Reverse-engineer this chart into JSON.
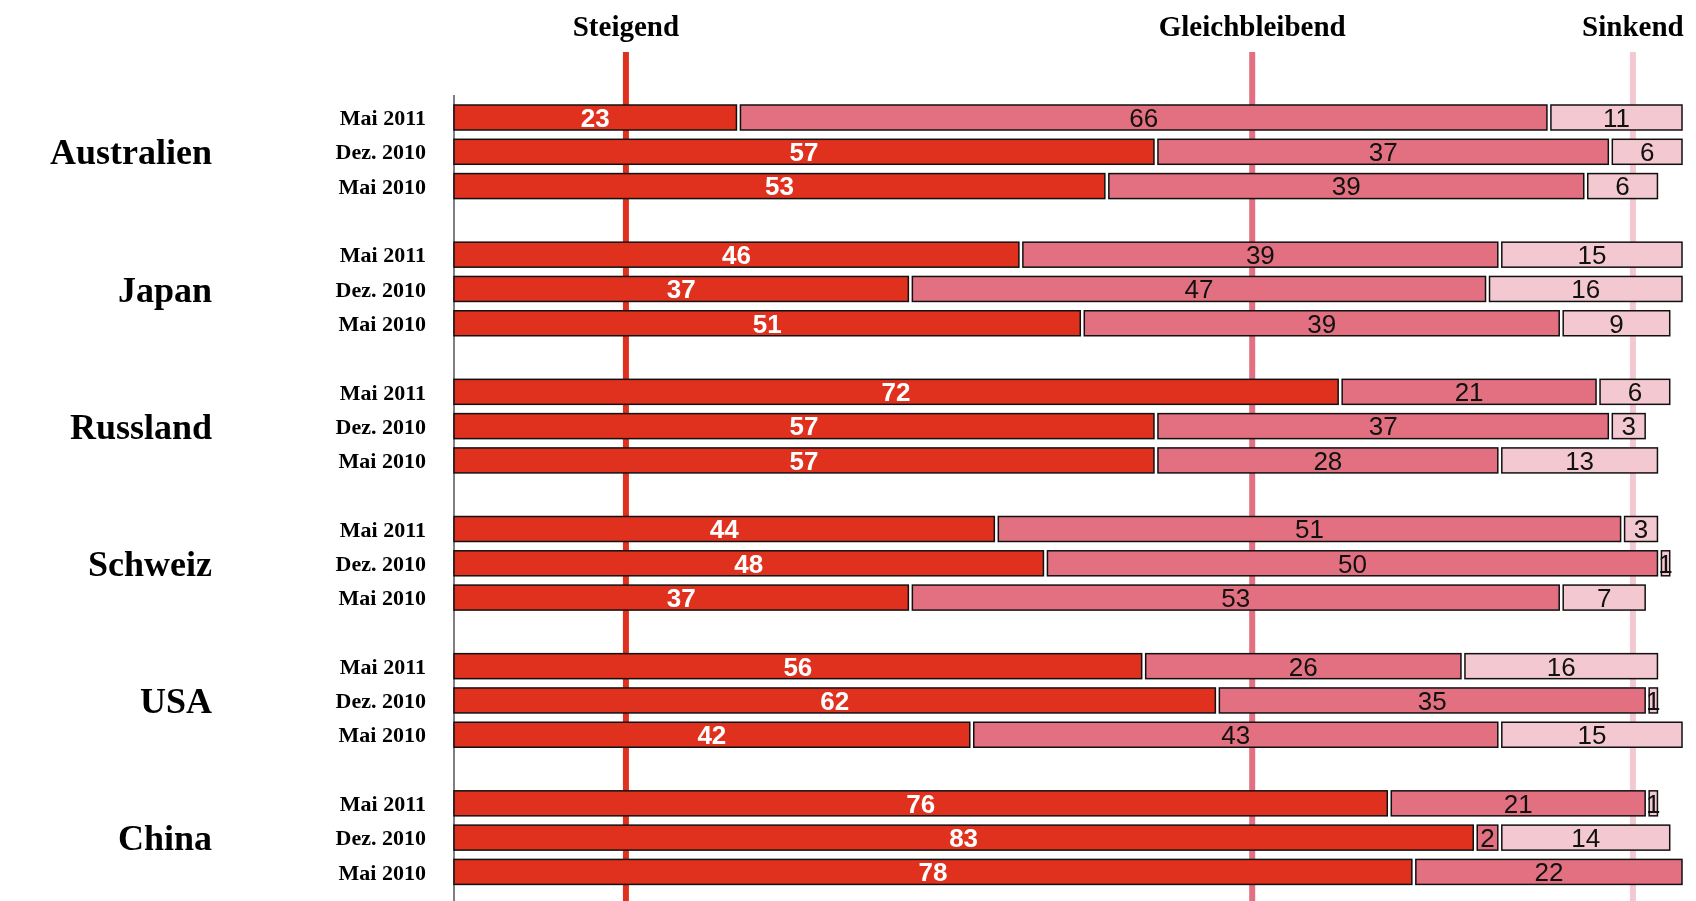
{
  "chart_data": {
    "type": "bar",
    "orientation": "horizontal",
    "stacked": true,
    "data_labels": true,
    "categories": [
      "Mai 2011",
      "Dez. 2010",
      "Mai 2010",
      null,
      "Mai 2011",
      "Dez. 2010",
      "Mai 2010",
      null,
      "Mai 2011",
      "Dez. 2010",
      "Mai 2010",
      null,
      "Mai 2011",
      "Dez. 2010",
      "Mai 2010",
      null,
      "Mai 2011",
      "Dez. 2010",
      "Mai 2010",
      null,
      "Mai 2011",
      "Dez. 2010",
      "Mai 2010"
    ],
    "series": [
      {
        "color": "#e0301e",
        "values": [
          23,
          57,
          53,
          null,
          46,
          37,
          51,
          null,
          72,
          57,
          57,
          null,
          44,
          48,
          37,
          null,
          56,
          62,
          42,
          null,
          76,
          83,
          78
        ]
      },
      {
        "color": "#e27081",
        "values": [
          66,
          37,
          39,
          null,
          39,
          47,
          39,
          null,
          21,
          37,
          28,
          null,
          51,
          50,
          53,
          null,
          26,
          35,
          43,
          null,
          21,
          2,
          22
        ]
      },
      {
        "color": "#f4c8d0",
        "values": [
          11,
          6,
          6,
          null,
          15,
          16,
          9,
          null,
          6,
          3,
          13,
          null,
          3,
          1,
          7,
          null,
          16,
          1,
          15,
          null,
          1,
          14,
          null
        ]
      }
    ],
    "ref_lines": [
      {
        "axis": "x",
        "value": 14,
        "label": "Steigend",
        "color": "#e0301e"
      },
      {
        "axis": "x",
        "value": 65,
        "label": "Gleichbleibend",
        "color": "#e27081"
      },
      {
        "axis": "x",
        "value": 96,
        "label": "Sinkend",
        "color": "#f4c8d0"
      }
    ],
    "annotations": [
      "Australien",
      "Japan",
      "Russland",
      "Schweiz",
      "USA",
      "China"
    ]
  }
}
